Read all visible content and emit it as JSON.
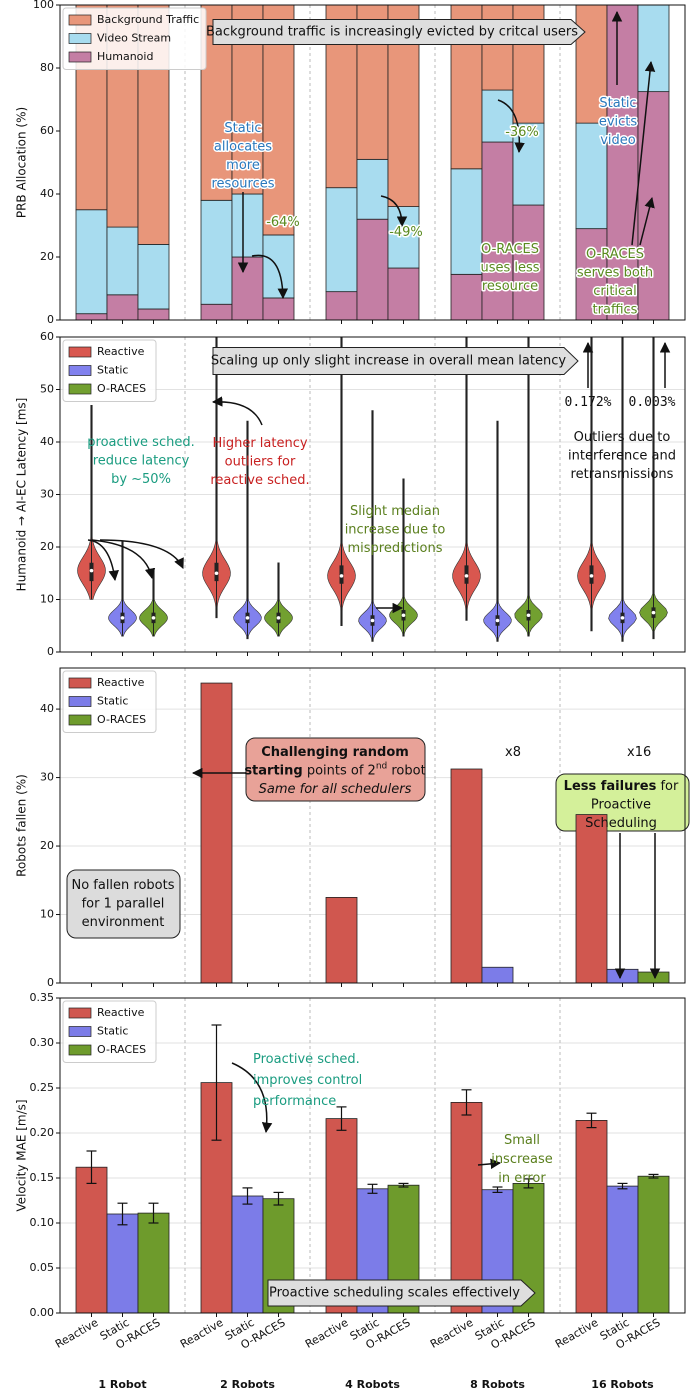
{
  "chart_data": [
    {
      "type": "stacked_bar",
      "ylabel": "PRB Allocation (%)",
      "ylim": [
        0,
        100
      ],
      "yticks": [
        0,
        20,
        40,
        60,
        80,
        100
      ],
      "grid": false,
      "legend": "upper left",
      "banner": "Background traffic is increasingly evicted by critcal users",
      "series": [
        {
          "name": "Background Traffic",
          "color": "#e8967a",
          "values": [
            [
              65,
              70.5,
              76
            ],
            [
              62,
              60,
              73
            ],
            [
              58,
              49,
              64
            ],
            [
              52,
              27,
              37.5
            ],
            [
              37.5,
              0,
              0
            ]
          ]
        },
        {
          "name": "Video Stream",
          "color": "#a8dcef",
          "values": [
            [
              33,
              21.5,
              20.5
            ],
            [
              33,
              20,
              20
            ],
            [
              33,
              19,
              19.5
            ],
            [
              33.5,
              16.5,
              26
            ],
            [
              33.5,
              0,
              27.5
            ]
          ]
        },
        {
          "name": "Humanoid",
          "color": "#c47ea4",
          "values": [
            [
              2,
              8,
              3.5
            ],
            [
              5,
              20,
              7
            ],
            [
              9,
              32,
              16.5
            ],
            [
              14.5,
              56.5,
              36.5
            ],
            [
              29,
              100,
              72.5
            ]
          ]
        }
      ],
      "annotations": [
        [
          [
            "Static"
          ],
          [
            "allocates"
          ],
          [
            "more"
          ],
          [
            "resources"
          ]
        ],
        [
          [
            "-64%"
          ]
        ],
        [
          [
            "-49%"
          ]
        ],
        [
          [
            "-36%"
          ]
        ],
        [
          [
            "O-RACES"
          ],
          [
            "uses less"
          ],
          [
            "resource"
          ]
        ],
        [
          [
            "Static"
          ],
          [
            "evicts"
          ],
          [
            "video"
          ]
        ],
        [
          [
            "O-RACES"
          ],
          [
            "serves both"
          ],
          [
            "critical"
          ],
          [
            "traffics"
          ]
        ]
      ]
    },
    {
      "type": "violin",
      "ylabel": "Humanoid → AI-EC Latency [ms]",
      "ylim": [
        0,
        60
      ],
      "yticks": [
        0,
        10,
        20,
        30,
        40,
        50,
        60
      ],
      "grid": true,
      "legend": "upper left",
      "banner": "Scaling up only slight increase in overall mean latency",
      "series": [
        {
          "name": "Reactive",
          "color": "#d9574f",
          "min": [
            10,
            6.5,
            5,
            6,
            4
          ],
          "q1": [
            13.5,
            13.5,
            13,
            13,
            13
          ],
          "median": [
            15.5,
            15,
            14.5,
            14.5,
            14.5
          ],
          "q3": [
            17,
            17,
            16.5,
            16.5,
            16.5
          ],
          "max": [
            47,
            60,
            60,
            60,
            60
          ]
        },
        {
          "name": "Static",
          "color": "#8181ee",
          "min": [
            3,
            2.5,
            2,
            2,
            2
          ],
          "q1": [
            5.5,
            5.5,
            5,
            5,
            5.5
          ],
          "median": [
            6.5,
            6.5,
            6,
            6,
            6.5
          ],
          "q3": [
            7.5,
            7.5,
            7,
            7,
            7.5
          ],
          "max": [
            21,
            44,
            46,
            44,
            60
          ]
        },
        {
          "name": "O-RACES",
          "color": "#72a030",
          "min": [
            3,
            3,
            3,
            3,
            2.5
          ],
          "q1": [
            5.5,
            5.5,
            6,
            6,
            6.5
          ],
          "median": [
            6.5,
            6.5,
            7,
            7,
            7.5
          ],
          "q3": [
            7.5,
            7.5,
            8,
            8,
            8.5
          ],
          "max": [
            15.5,
            17,
            33,
            60,
            60
          ]
        }
      ],
      "annotations": [
        [
          [
            "0.172%"
          ]
        ],
        [
          [
            "0.003%"
          ]
        ],
        [
          [
            "Outliers due to"
          ],
          [
            "interference and"
          ],
          [
            "retransmissions"
          ]
        ],
        [
          [
            "proactive sched."
          ],
          [
            "reduce latency"
          ],
          [
            "by ~50%"
          ]
        ],
        [
          [
            "Higher latency"
          ],
          [
            "outliers for"
          ],
          [
            "reactive sched."
          ]
        ],
        [
          [
            "Slight median"
          ],
          [
            "increase due to"
          ],
          [
            "mispredictions"
          ]
        ]
      ]
    },
    {
      "type": "bar",
      "ylabel": "Robots fallen (%)",
      "ylim": [
        0,
        46
      ],
      "yticks": [
        0,
        10,
        20,
        30,
        40
      ],
      "grid": true,
      "legend": "upper left",
      "series": [
        {
          "name": "Reactive",
          "color": "#d0574f",
          "values": [
            0,
            43.8,
            12.5,
            31.25,
            24.6
          ]
        },
        {
          "name": "Static",
          "color": "#7c7ce8",
          "values": [
            0,
            0,
            0,
            2.3,
            2.0
          ]
        },
        {
          "name": "O-RACES",
          "color": "#6e9b2c",
          "values": [
            0,
            0,
            0,
            0,
            1.6
          ]
        }
      ],
      "annotations": [
        [
          [
            "No fallen robots"
          ],
          [
            "for 1 parallel"
          ],
          [
            "environment"
          ]
        ],
        [
          [
            "Challenging random"
          ],
          [
            "starting",
            " points of 2",
            "nd",
            " robot"
          ],
          [
            "Same for all schedulers"
          ]
        ],
        [
          [
            "Less failures",
            " for"
          ],
          [
            "Proactive"
          ],
          [
            "Scheduling"
          ]
        ],
        [
          [
            "x8"
          ]
        ],
        [
          [
            "x16"
          ]
        ]
      ]
    },
    {
      "type": "bar",
      "ylabel": "Velocity MAE [m/s]",
      "ylim": [
        0,
        0.35
      ],
      "yticks": [
        {
          "value": 0,
          "label": "0.00"
        },
        {
          "value": 0.05,
          "label": "0.05"
        },
        {
          "value": 0.1,
          "label": "0.10"
        },
        {
          "value": 0.15,
          "label": "0.15"
        },
        {
          "value": 0.2,
          "label": "0.20"
        },
        {
          "value": 0.25,
          "label": "0.25"
        },
        {
          "value": 0.3,
          "label": "0.30"
        },
        {
          "value": 0.35,
          "label": "0.35"
        }
      ],
      "grid": true,
      "legend": "upper left",
      "banner": "Proactive scheduling scales effectively",
      "categories": [
        "1 Robot",
        "2 Robots",
        "4 Robots",
        "8 Robots",
        "16 Robots"
      ],
      "tick_labels": [
        "Reactive",
        "Static",
        "O-RACES"
      ],
      "series": [
        {
          "name": "Reactive",
          "color": "#d0574f",
          "values": [
            0.162,
            0.256,
            0.216,
            0.234,
            0.214
          ],
          "errors": [
            0.018,
            0.064,
            0.013,
            0.014,
            0.008
          ]
        },
        {
          "name": "Static",
          "color": "#7c7ce8",
          "values": [
            0.11,
            0.13,
            0.138,
            0.137,
            0.141
          ],
          "errors": [
            0.012,
            0.009,
            0.005,
            0.003,
            0.003
          ]
        },
        {
          "name": "O-RACES",
          "color": "#6e9b2c",
          "values": [
            0.111,
            0.127,
            0.142,
            0.144,
            0.152
          ],
          "errors": [
            0.011,
            0.007,
            0.002,
            0.005,
            0.002
          ]
        }
      ],
      "annotations": [
        [
          [
            "Proactive sched."
          ],
          [
            "improves control"
          ],
          [
            "performance"
          ]
        ],
        [
          [
            "Small"
          ],
          [
            "inscrease"
          ],
          [
            "in error"
          ]
        ]
      ]
    }
  ]
}
